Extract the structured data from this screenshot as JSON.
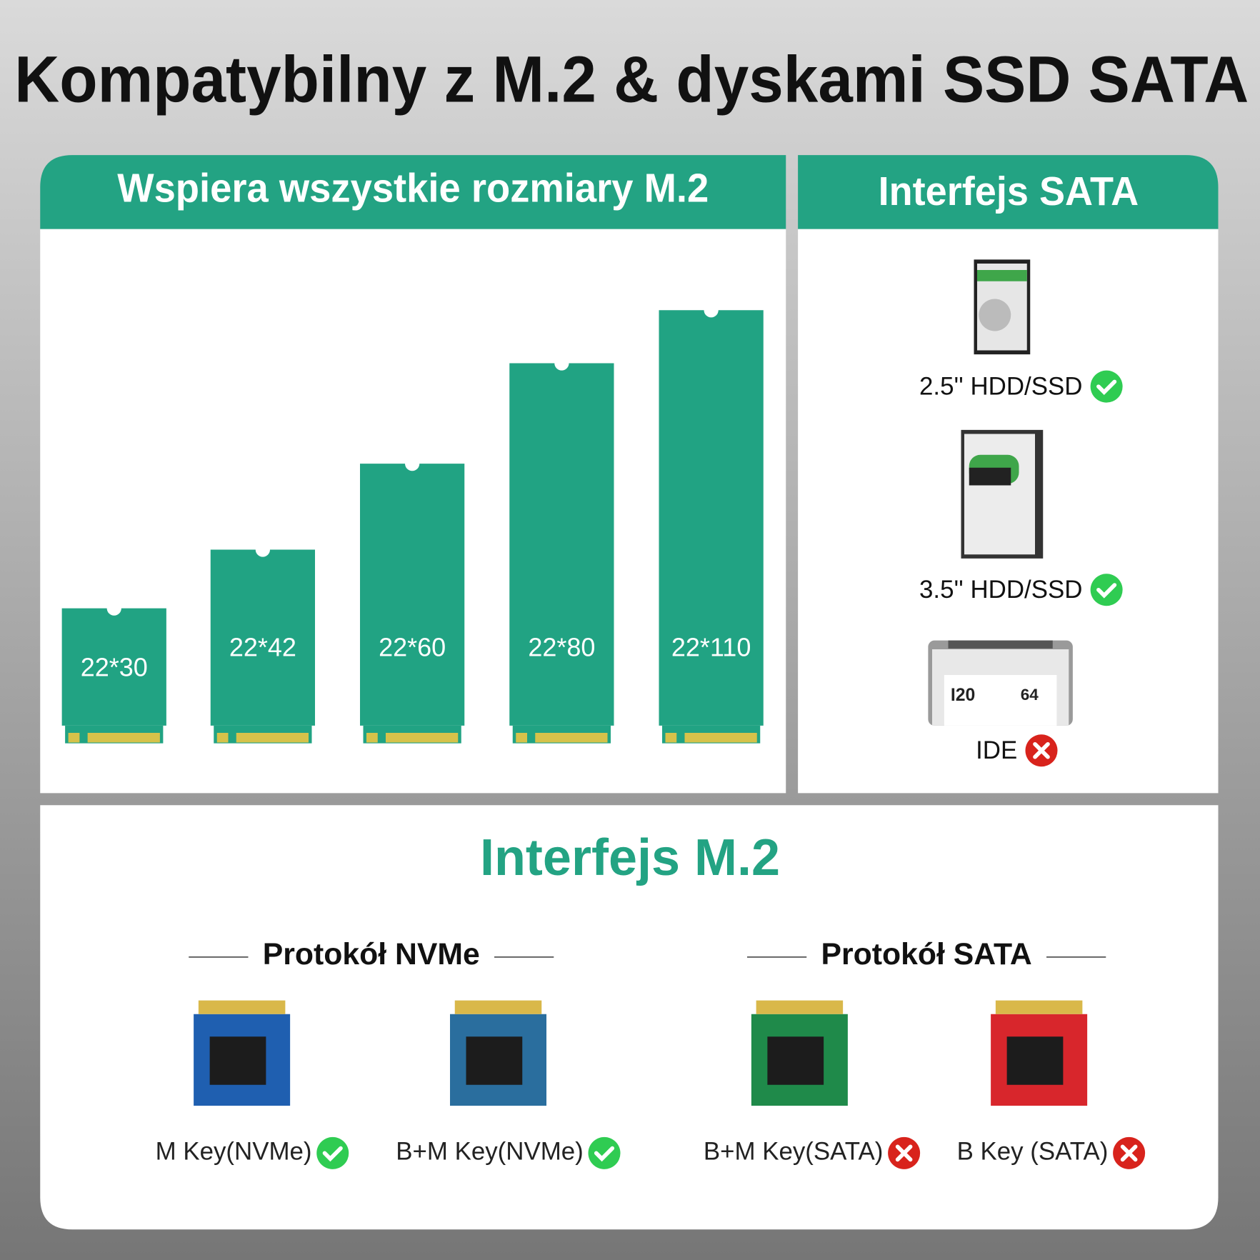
{
  "title": "Kompatybilny z M.2 & dyskami SSD SATA",
  "sizes": {
    "title": "Wspiera wszystkie rozmiary M.2",
    "items": [
      "22*30",
      "22*42",
      "22*60",
      "22*80",
      "22*110"
    ]
  },
  "sata": {
    "title": "Interfejs SATA",
    "items": [
      {
        "label": "2.5'' HDD/SSD",
        "supported": true
      },
      {
        "label": "3.5'' HDD/SSD",
        "supported": true
      },
      {
        "label": "IDE",
        "supported": false
      }
    ]
  },
  "m2": {
    "title": "Interfejs M.2",
    "groups": [
      {
        "title": "Protokół NVMe",
        "items": [
          {
            "label": "M Key(NVMe)",
            "supported": true
          },
          {
            "label": "B+M Key(NVMe)",
            "supported": true
          }
        ]
      },
      {
        "title": "Protokół SATA",
        "items": [
          {
            "label": "B+M Key(SATA)",
            "supported": false
          },
          {
            "label": "B Key (SATA)",
            "supported": false
          }
        ]
      }
    ]
  }
}
